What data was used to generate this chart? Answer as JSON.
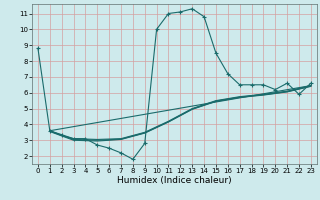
{
  "bg_color": "#ceeaec",
  "grid_color": "#d4a0a0",
  "line_color": "#1a6b6b",
  "line_width": 0.8,
  "marker": "+",
  "marker_size": 3,
  "marker_edge_width": 0.8,
  "xlabel": "Humidex (Indice chaleur)",
  "xlabel_fontsize": 6.5,
  "xlim": [
    -0.5,
    23.5
  ],
  "ylim": [
    1.5,
    11.6
  ],
  "xticks": [
    0,
    1,
    2,
    3,
    4,
    5,
    6,
    7,
    8,
    9,
    10,
    11,
    12,
    13,
    14,
    15,
    16,
    17,
    18,
    19,
    20,
    21,
    22,
    23
  ],
  "yticks": [
    2,
    3,
    4,
    5,
    6,
    7,
    8,
    9,
    10,
    11
  ],
  "tick_fontsize": 5,
  "line1_x": [
    0,
    1,
    2,
    3,
    4,
    5,
    6,
    7,
    8,
    9,
    10,
    11,
    12,
    13,
    14,
    15,
    16,
    17,
    18,
    19,
    20,
    21,
    22,
    23
  ],
  "line1_y": [
    8.8,
    3.6,
    3.3,
    3.1,
    3.1,
    2.7,
    2.5,
    2.2,
    1.8,
    2.8,
    10.0,
    11.0,
    11.1,
    11.3,
    10.8,
    8.5,
    7.2,
    6.5,
    6.5,
    6.5,
    6.2,
    6.6,
    5.9,
    6.6
  ],
  "line2_x": [
    1,
    3,
    5,
    7,
    9,
    11,
    13,
    15,
    17,
    19,
    21,
    23
  ],
  "line2_y": [
    3.6,
    3.1,
    3.05,
    3.1,
    3.5,
    4.2,
    5.0,
    5.5,
    5.75,
    5.9,
    6.1,
    6.45
  ],
  "line3_x": [
    1,
    3,
    5,
    7,
    9,
    11,
    13,
    15,
    17,
    19,
    21,
    23
  ],
  "line3_y": [
    3.55,
    3.0,
    2.95,
    3.05,
    3.45,
    4.15,
    4.95,
    5.45,
    5.7,
    5.85,
    6.05,
    6.4
  ],
  "line4_x": [
    1,
    3,
    5,
    7,
    9,
    11,
    13,
    15,
    17,
    19,
    21,
    23
  ],
  "line4_y": [
    3.58,
    3.05,
    3.0,
    3.07,
    3.47,
    4.17,
    4.97,
    5.47,
    5.72,
    5.87,
    6.07,
    6.42
  ],
  "line5_x": [
    1,
    23
  ],
  "line5_y": [
    3.6,
    6.45
  ]
}
